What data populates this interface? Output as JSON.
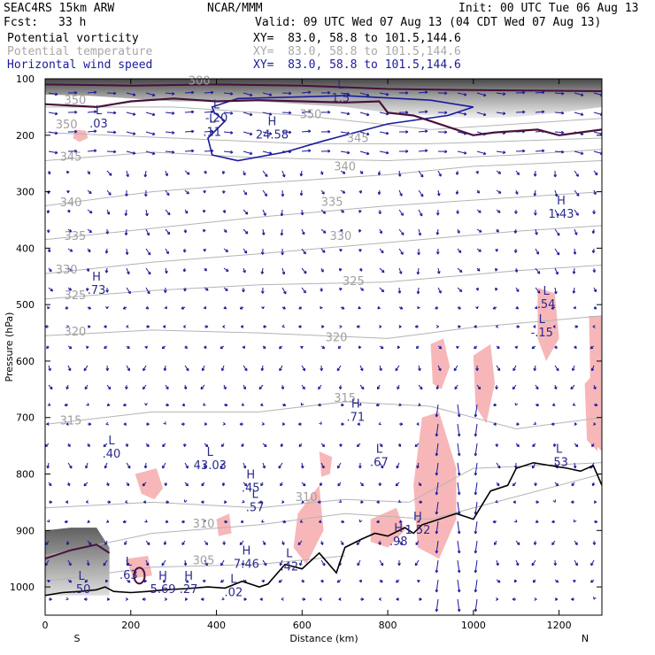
{
  "header": {
    "model": "SEAC4RS 15km ARW",
    "center": "NCAR/MMM",
    "init": "Init: 00 UTC Tue 06 Aug 13",
    "fcst_label": "Fcst:",
    "fcst_value": "33 h",
    "valid": "Valid: 09 UTC Wed 07 Aug 13 (04 CDT Wed 07 Aug 13)",
    "fields": [
      {
        "name": "Potential vorticity",
        "xy": "XY=  83.0, 58.8 to 101.5,144.6",
        "color": "#000000"
      },
      {
        "name": "Potential temperature",
        "xy": "XY=  83.0, 58.8 to 101.5,144.6",
        "color": "#a8a8a8"
      },
      {
        "name": "Horizontal wind speed",
        "xy": "XY=  83.0, 58.8 to 101.5,144.6",
        "color": "#1a1a9c"
      }
    ]
  },
  "chart_data": {
    "type": "cross-section",
    "xlabel": "Distance (km)",
    "ylabel": "Pressure (hPa)",
    "x_ticks": [
      0,
      200,
      400,
      600,
      800,
      1000,
      1200
    ],
    "y_ticks": [
      100,
      200,
      300,
      400,
      500,
      600,
      700,
      800,
      900,
      1000
    ],
    "xlim": [
      0,
      1300
    ],
    "ylim": [
      100,
      1050
    ],
    "endpoint_labels": {
      "left": "S",
      "right": "N"
    },
    "theta_labels": [
      {
        "label": "350",
        "x": 70,
        "p": 145
      },
      {
        "label": "350",
        "x": 50,
        "p": 188
      },
      {
        "label": "350",
        "x": 620,
        "p": 170
      },
      {
        "label": "345",
        "x": 60,
        "p": 245
      },
      {
        "label": "345",
        "x": 730,
        "p": 212
      },
      {
        "label": "340",
        "x": 60,
        "p": 326
      },
      {
        "label": "340",
        "x": 700,
        "p": 262
      },
      {
        "label": "335",
        "x": 70,
        "p": 385
      },
      {
        "label": "335",
        "x": 670,
        "p": 325
      },
      {
        "label": "330",
        "x": 50,
        "p": 445
      },
      {
        "label": "330",
        "x": 690,
        "p": 385
      },
      {
        "label": "325",
        "x": 70,
        "p": 490
      },
      {
        "label": "325",
        "x": 720,
        "p": 465
      },
      {
        "label": "320",
        "x": 70,
        "p": 555
      },
      {
        "label": "320",
        "x": 680,
        "p": 565
      },
      {
        "label": "315",
        "x": 60,
        "p": 712
      },
      {
        "label": "315",
        "x": 700,
        "p": 672
      },
      {
        "label": "310",
        "x": 610,
        "p": 848
      },
      {
        "label": "310",
        "x": 370,
        "p": 895
      },
      {
        "label": "305",
        "x": 370,
        "p": 960
      },
      {
        "label": "300",
        "x": 360,
        "p": 110
      }
    ],
    "extrema": [
      {
        "kind": "L",
        "value": ".03",
        "x": 125,
        "p": 175
      },
      {
        "kind": "L",
        "value": "-.20",
        "x": 400,
        "p": 165
      },
      {
        "kind": "L",
        "value": ".11",
        "x": 390,
        "p": 190
      },
      {
        "kind": "H",
        "value": "24.58",
        "x": 530,
        "p": 195
      },
      {
        "kind": "L",
        "value": "1.5",
        "x": 690,
        "p": 130
      },
      {
        "kind": "H",
        "value": "1.43",
        "x": 1205,
        "p": 335
      },
      {
        "kind": "H",
        "value": ".73",
        "x": 120,
        "p": 470
      },
      {
        "kind": "L",
        "value": ".54",
        "x": 1170,
        "p": 495
      },
      {
        "kind": "L",
        "value": "-.15",
        "x": 1160,
        "p": 545
      },
      {
        "kind": "L",
        "value": ".40",
        "x": 155,
        "p": 760
      },
      {
        "kind": "L",
        "value": "43.03",
        "x": 385,
        "p": 780
      },
      {
        "kind": "H",
        "value": ".71",
        "x": 725,
        "p": 695
      },
      {
        "kind": "L",
        "value": ".67",
        "x": 780,
        "p": 775
      },
      {
        "kind": "L",
        "value": ".53",
        "x": 1200,
        "p": 775
      },
      {
        "kind": "H",
        "value": ".45",
        "x": 480,
        "p": 820
      },
      {
        "kind": "L",
        "value": ".57",
        "x": 490,
        "p": 855
      },
      {
        "kind": "H",
        "value": "7.46",
        "x": 470,
        "p": 955
      },
      {
        "kind": "L",
        "value": ".42",
        "x": 570,
        "p": 960
      },
      {
        "kind": "L",
        "value": ".63",
        "x": 195,
        "p": 975
      },
      {
        "kind": "H",
        "value": "5.69",
        "x": 275,
        "p": 1000
      },
      {
        "kind": "H",
        "value": ".27",
        "x": 335,
        "p": 1000
      },
      {
        "kind": "L",
        "value": ".50",
        "x": 85,
        "p": 1000
      },
      {
        "kind": "L",
        "value": ".02",
        "x": 440,
        "p": 1005
      },
      {
        "kind": "H",
        "value": ".98",
        "x": 825,
        "p": 915
      },
      {
        "kind": "H",
        "value": "1.52",
        "x": 870,
        "p": 895
      }
    ],
    "terrain": {
      "x": [
        0,
        40,
        80,
        120,
        140,
        160,
        200,
        240,
        280,
        330,
        380,
        420,
        460,
        500,
        520,
        560,
        600,
        640,
        680,
        700,
        740,
        770,
        800,
        840,
        860,
        880,
        920,
        960,
        1000,
        1040,
        1080,
        1100,
        1140,
        1180,
        1220,
        1250,
        1280,
        1300
      ],
      "p": [
        1015,
        1010,
        1008,
        1005,
        1000,
        1008,
        1010,
        1008,
        1005,
        1003,
        1000,
        1002,
        990,
        1000,
        995,
        960,
        968,
        940,
        975,
        930,
        915,
        905,
        910,
        895,
        905,
        890,
        880,
        870,
        880,
        830,
        820,
        790,
        780,
        785,
        790,
        795,
        785,
        820
      ]
    }
  }
}
